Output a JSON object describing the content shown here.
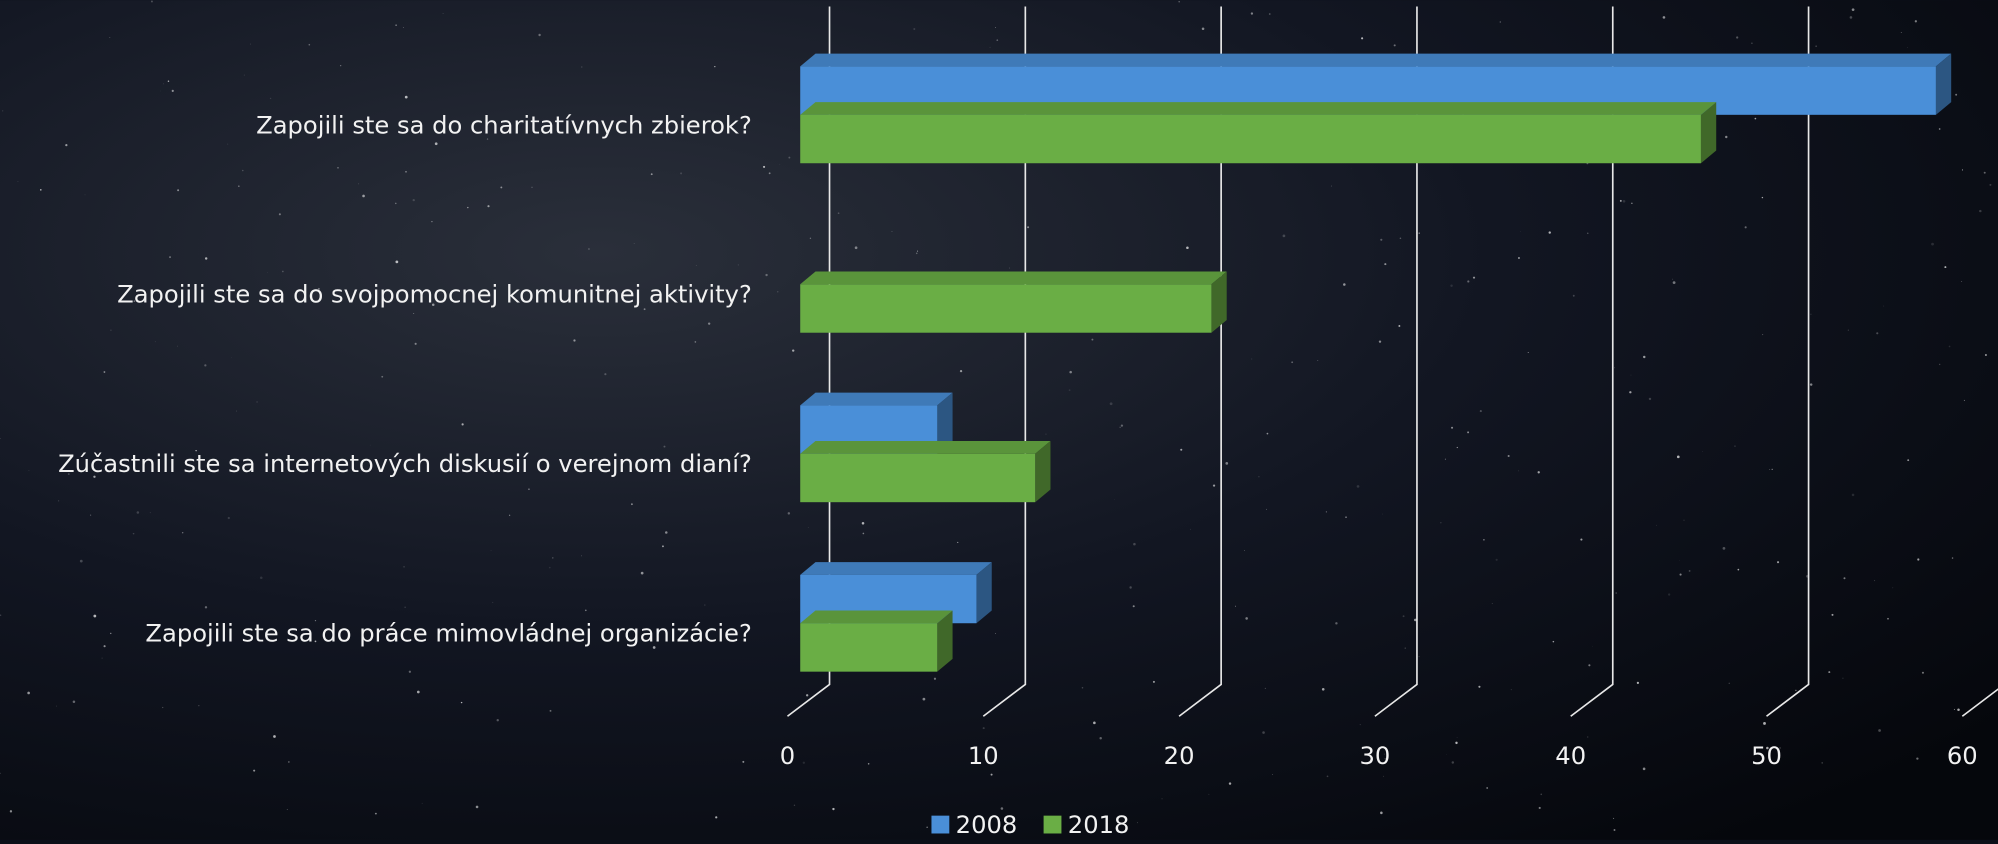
{
  "chart_data": {
    "type": "bar3d",
    "orientation": "horizontal",
    "categories": [
      "Zapojili ste sa do charitatívnych zbierok?",
      "Zapojili ste sa do svojpomocnej komunitnej aktivity?",
      "Zúčastnili ste sa internetových diskusií o verejnom dianí?",
      "Zapojili ste sa do práce mimovládnej organizácie?"
    ],
    "series": [
      {
        "name": "2008",
        "color": "#4a8fd8",
        "values": [
          58,
          null,
          7,
          9
        ]
      },
      {
        "name": "2018",
        "color": "#6aae45",
        "values": [
          46,
          21,
          12,
          7
        ]
      }
    ],
    "xlim": [
      0,
      60
    ],
    "xticks": [
      0,
      10,
      20,
      30,
      40,
      50,
      60
    ],
    "grid": true,
    "legend": "bottom"
  }
}
